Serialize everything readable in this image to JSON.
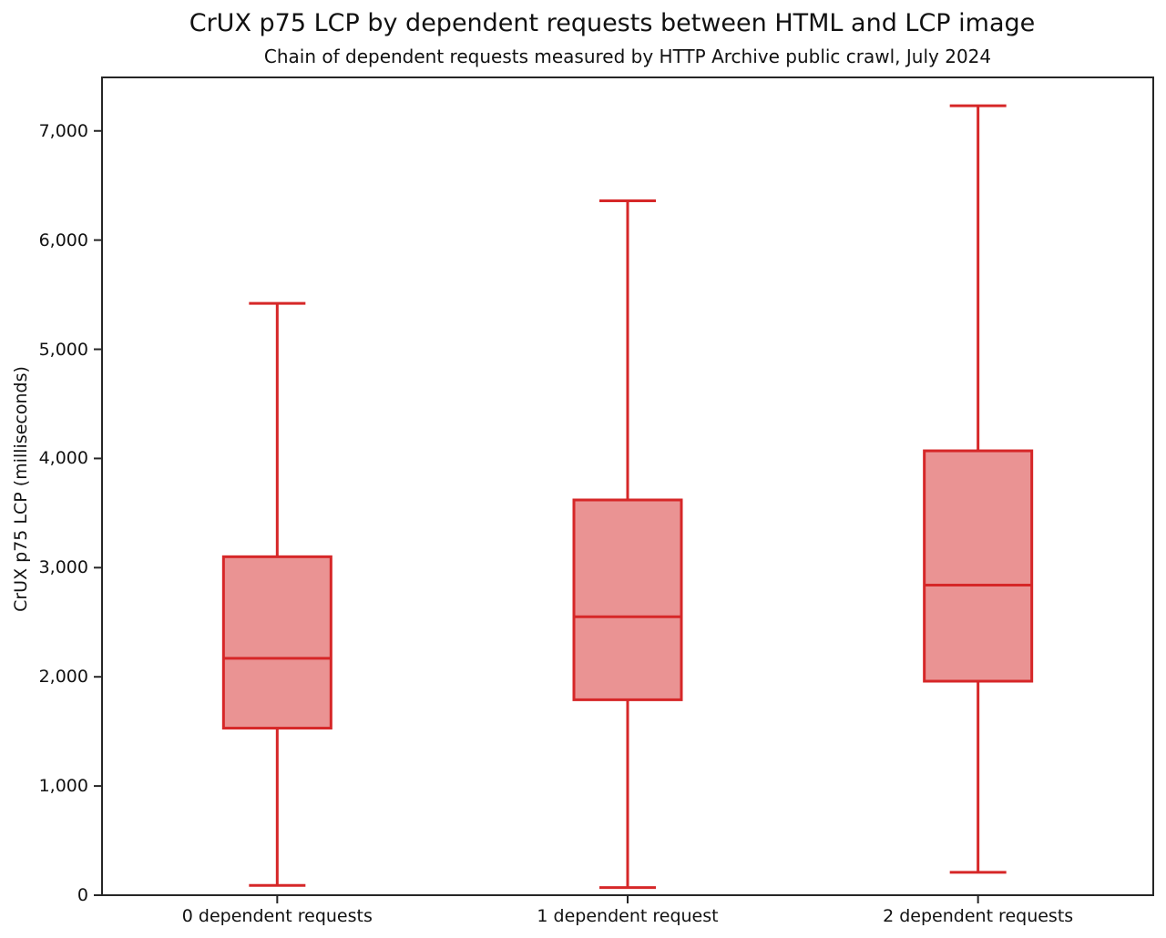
{
  "figure": {
    "title": "CrUX p75 LCP by dependent requests between HTML and LCP image",
    "subtitle": "Chain of dependent requests measured by HTTP Archive public crawl, July 2024"
  },
  "chart_data": {
    "type": "boxplot",
    "title": "CrUX p75 LCP by dependent requests between HTML and LCP image",
    "subtitle": "Chain of dependent requests measured by HTTP Archive public crawl, July 2024",
    "xlabel": "",
    "ylabel": "CrUX p75 LCP (milliseconds)",
    "categories": [
      "0 dependent requests",
      "1 dependent request",
      "2 dependent requests"
    ],
    "series": [
      {
        "name": "0 dependent requests",
        "whisker_min": 90,
        "q1": 1530,
        "median": 2170,
        "q3": 3100,
        "whisker_max": 5420
      },
      {
        "name": "1 dependent request",
        "whisker_min": 70,
        "q1": 1790,
        "median": 2550,
        "q3": 3620,
        "whisker_max": 6360
      },
      {
        "name": "2 dependent requests",
        "whisker_min": 210,
        "q1": 1960,
        "median": 2840,
        "q3": 4070,
        "whisker_max": 7230
      }
    ],
    "yticks": [
      0,
      1000,
      2000,
      3000,
      4000,
      5000,
      6000,
      7000
    ],
    "ytick_labels": [
      "0",
      "1,000",
      "2,000",
      "3,000",
      "4,000",
      "5,000",
      "6,000",
      "7,000"
    ],
    "ylim": [
      0,
      7490
    ],
    "grid": false,
    "legend": "none",
    "colors": {
      "box_stroke": "#d62728",
      "box_fill": "rgba(214,39,40,0.5)",
      "axis": "#262626",
      "text": "#111111"
    }
  }
}
